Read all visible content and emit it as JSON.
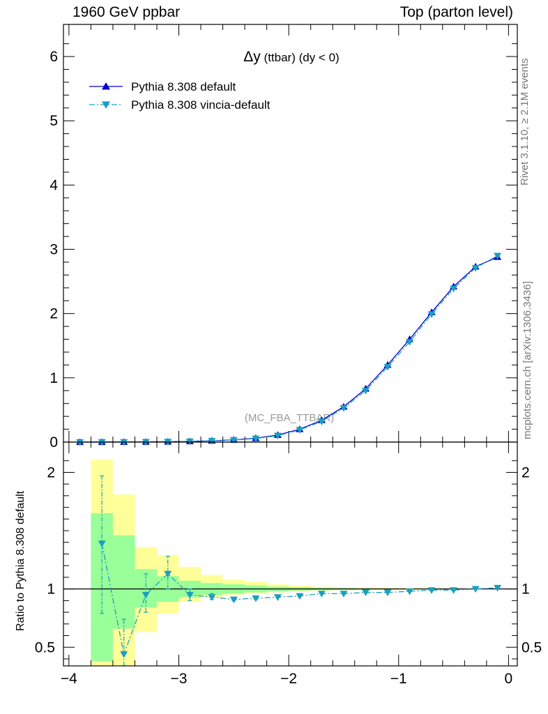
{
  "header": {
    "left": "1960 GeV ppbar",
    "right": "Top (parton level)"
  },
  "side_labels": {
    "rivet": "Rivet 3.1.10, ≥ 2.1M events",
    "mcplots": "mcplots.cern.ch [arXiv:1306.3436]"
  },
  "chart_data": [
    {
      "type": "line",
      "title_main": "Δy",
      "title_rest": " (ttbar) (dy < 0)",
      "watermark": "(MC_FBA_TTBAR)",
      "xlim": [
        -4.05,
        0.08
      ],
      "ylim": [
        0,
        6.5
      ],
      "yticks": [
        0,
        1,
        2,
        3,
        4,
        5,
        6
      ],
      "ytick_labels": [
        "0",
        "1",
        "2",
        "3",
        "4",
        "5",
        "6"
      ],
      "grid": false,
      "legend_position": "top-left",
      "x": [
        -3.9,
        -3.7,
        -3.5,
        -3.3,
        -3.1,
        -2.9,
        -2.7,
        -2.5,
        -2.3,
        -2.1,
        -1.9,
        -1.7,
        -1.5,
        -1.3,
        -1.1,
        -0.9,
        -0.7,
        -0.5,
        -0.3,
        -0.1
      ],
      "series": [
        {
          "name": "Pythia 8.308 default",
          "color": "#0000cc",
          "marker": "triangle-up",
          "line": "solid",
          "values": [
            0.0,
            0.0005,
            0.0015,
            0.003,
            0.006,
            0.011,
            0.02,
            0.035,
            0.06,
            0.11,
            0.2,
            0.34,
            0.55,
            0.83,
            1.2,
            1.6,
            2.02,
            2.42,
            2.73,
            2.88
          ]
        },
        {
          "name": "Pythia 8.308 vincia-default",
          "color": "#1a9fbf",
          "marker": "triangle-down",
          "line": "dash-dot",
          "values": [
            0.0,
            0.0007,
            0.0007,
            0.003,
            0.007,
            0.011,
            0.019,
            0.032,
            0.055,
            0.1,
            0.19,
            0.32,
            0.53,
            0.8,
            1.17,
            1.56,
            1.99,
            2.39,
            2.71,
            2.9
          ]
        }
      ]
    },
    {
      "type": "line",
      "ylabel": "Ratio to Pythia 8.308 default",
      "xlim": [
        -4.05,
        0.08
      ],
      "ylim": [
        0.34,
        2.26
      ],
      "xticks": [
        -4,
        -3,
        -2,
        -1,
        0
      ],
      "xtick_labels": [
        "−4",
        "−3",
        "−2",
        "−1",
        "0"
      ],
      "yticks": [
        0.5,
        1,
        2
      ],
      "ytick_labels": [
        "0.5",
        "1",
        "2"
      ],
      "reference_line": 1,
      "grid": false,
      "bins": [
        {
          "x0": -3.8,
          "x1": -3.6,
          "band_inner": [
            0.38,
            1.65
          ],
          "band_outer": [
            0.34,
            2.11
          ]
        },
        {
          "x0": -3.6,
          "x1": -3.4,
          "band_inner": [
            0.66,
            1.46
          ],
          "band_outer": [
            0.34,
            1.81
          ]
        },
        {
          "x0": -3.4,
          "x1": -3.2,
          "band_inner": [
            0.84,
            1.17
          ],
          "band_outer": [
            0.63,
            1.36
          ]
        },
        {
          "x0": -3.2,
          "x1": -3.0,
          "band_inner": [
            0.89,
            1.11
          ],
          "band_outer": [
            0.79,
            1.29
          ]
        },
        {
          "x0": -3.0,
          "x1": -2.8,
          "band_inner": [
            0.93,
            1.07
          ],
          "band_outer": [
            0.89,
            1.19
          ]
        },
        {
          "x0": -2.8,
          "x1": -2.6,
          "band_inner": [
            0.95,
            1.05
          ],
          "band_outer": [
            0.93,
            1.12
          ]
        },
        {
          "x0": -2.6,
          "x1": -2.4,
          "band_inner": [
            0.96,
            1.04
          ],
          "band_outer": [
            0.95,
            1.08
          ]
        },
        {
          "x0": -2.4,
          "x1": -2.2,
          "band_inner": [
            0.97,
            1.03
          ],
          "band_outer": [
            0.96,
            1.06
          ]
        },
        {
          "x0": -2.2,
          "x1": -2.0,
          "band_inner": [
            0.98,
            1.02
          ],
          "band_outer": [
            0.97,
            1.04
          ]
        },
        {
          "x0": -2.0,
          "x1": -1.8,
          "band_inner": [
            0.985,
            1.015
          ],
          "band_outer": [
            0.98,
            1.03
          ]
        },
        {
          "x0": -1.8,
          "x1": -1.6,
          "band_inner": [
            0.99,
            1.01
          ],
          "band_outer": [
            0.985,
            1.02
          ]
        },
        {
          "x0": -1.6,
          "x1": -1.4,
          "band_inner": [
            0.992,
            1.008
          ],
          "band_outer": [
            0.99,
            1.015
          ]
        },
        {
          "x0": -1.4,
          "x1": -1.2,
          "band_inner": [
            0.994,
            1.006
          ],
          "band_outer": [
            0.992,
            1.012
          ]
        },
        {
          "x0": -1.2,
          "x1": -1.0,
          "band_inner": [
            0.995,
            1.005
          ],
          "band_outer": [
            0.994,
            1.01
          ]
        },
        {
          "x0": -1.0,
          "x1": -0.8,
          "band_inner": [
            0.996,
            1.004
          ],
          "band_outer": [
            0.995,
            1.008
          ]
        },
        {
          "x0": -0.8,
          "x1": -0.6,
          "band_inner": [
            0.997,
            1.003
          ],
          "band_outer": [
            0.996,
            1.006
          ]
        },
        {
          "x0": -0.6,
          "x1": -0.4,
          "band_inner": [
            0.997,
            1.003
          ],
          "band_outer": [
            0.996,
            1.005
          ]
        },
        {
          "x0": -0.4,
          "x1": -0.2,
          "band_inner": [
            0.998,
            1.002
          ],
          "band_outer": [
            0.997,
            1.004
          ]
        },
        {
          "x0": -0.2,
          "x1": 0.0,
          "band_inner": [
            0.998,
            1.002
          ],
          "band_outer": [
            0.997,
            1.004
          ]
        }
      ],
      "ratio_points": [
        {
          "x": -3.7,
          "y": 1.39,
          "err_lo": 0.79,
          "err_hi": 1.97
        },
        {
          "x": -3.5,
          "y": 0.44,
          "err_lo": 0.34,
          "err_hi": 0.74
        },
        {
          "x": -3.3,
          "y": 0.95,
          "err_lo": 0.8,
          "err_hi": 1.13
        },
        {
          "x": -3.1,
          "y": 1.13,
          "err_lo": 1.0,
          "err_hi": 1.28
        },
        {
          "x": -2.9,
          "y": 0.95,
          "err_lo": 0.9,
          "err_hi": 1.0
        },
        {
          "x": -2.7,
          "y": 0.93,
          "err_lo": 0.91,
          "err_hi": 0.96
        },
        {
          "x": -2.5,
          "y": 0.91,
          "err_lo": 0.9,
          "err_hi": 0.92
        },
        {
          "x": -2.3,
          "y": 0.92,
          "err_lo": 0.91,
          "err_hi": 0.93
        },
        {
          "x": -2.1,
          "y": 0.93,
          "err_lo": 0.925,
          "err_hi": 0.935
        },
        {
          "x": -1.9,
          "y": 0.94,
          "err_lo": 0.935,
          "err_hi": 0.945
        },
        {
          "x": -1.7,
          "y": 0.96,
          "err_lo": 0.955,
          "err_hi": 0.965
        },
        {
          "x": -1.5,
          "y": 0.96,
          "err_lo": 0.955,
          "err_hi": 0.965
        },
        {
          "x": -1.3,
          "y": 0.97,
          "err_lo": 0.966,
          "err_hi": 0.974
        },
        {
          "x": -1.1,
          "y": 0.97,
          "err_lo": 0.966,
          "err_hi": 0.974
        },
        {
          "x": -0.9,
          "y": 0.98,
          "err_lo": 0.977,
          "err_hi": 0.983
        },
        {
          "x": -0.7,
          "y": 0.99,
          "err_lo": 0.987,
          "err_hi": 0.993
        },
        {
          "x": -0.5,
          "y": 0.99,
          "err_lo": 0.987,
          "err_hi": 0.993
        },
        {
          "x": -0.3,
          "y": 1.0,
          "err_lo": 0.997,
          "err_hi": 1.003
        },
        {
          "x": -0.1,
          "y": 1.01,
          "err_lo": 1.007,
          "err_hi": 1.013
        }
      ],
      "band_colors": {
        "inner": "#99ff99",
        "outer": "#ffff99"
      }
    }
  ]
}
